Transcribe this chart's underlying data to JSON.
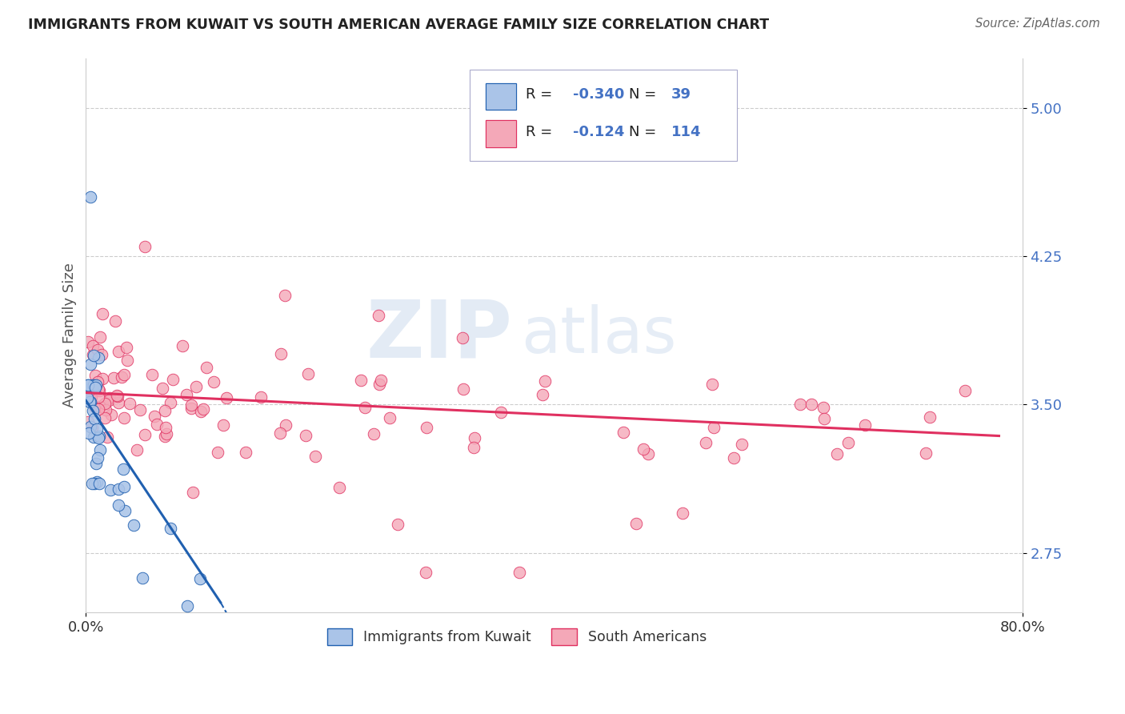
{
  "title": "IMMIGRANTS FROM KUWAIT VS SOUTH AMERICAN AVERAGE FAMILY SIZE CORRELATION CHART",
  "source": "Source: ZipAtlas.com",
  "ylabel": "Average Family Size",
  "xlim": [
    0.0,
    0.8
  ],
  "ylim": [
    2.45,
    5.25
  ],
  "yticks": [
    2.75,
    3.5,
    4.25,
    5.0
  ],
  "xticks": [
    0.0,
    0.8
  ],
  "xticklabels": [
    "0.0%",
    "80.0%"
  ],
  "blue_color": "#aac4e8",
  "pink_color": "#f4a8b8",
  "blue_line_color": "#2060b0",
  "pink_line_color": "#e03060",
  "blue_edge": "#2060b0",
  "pink_edge": "#e03060",
  "watermark_zip": "ZIP",
  "watermark_atlas": "atlas",
  "legend_text_color": "#4472c4",
  "legend_r1": "-0.340",
  "legend_n1": "39",
  "legend_r2": "-0.124",
  "legend_n2": "114"
}
